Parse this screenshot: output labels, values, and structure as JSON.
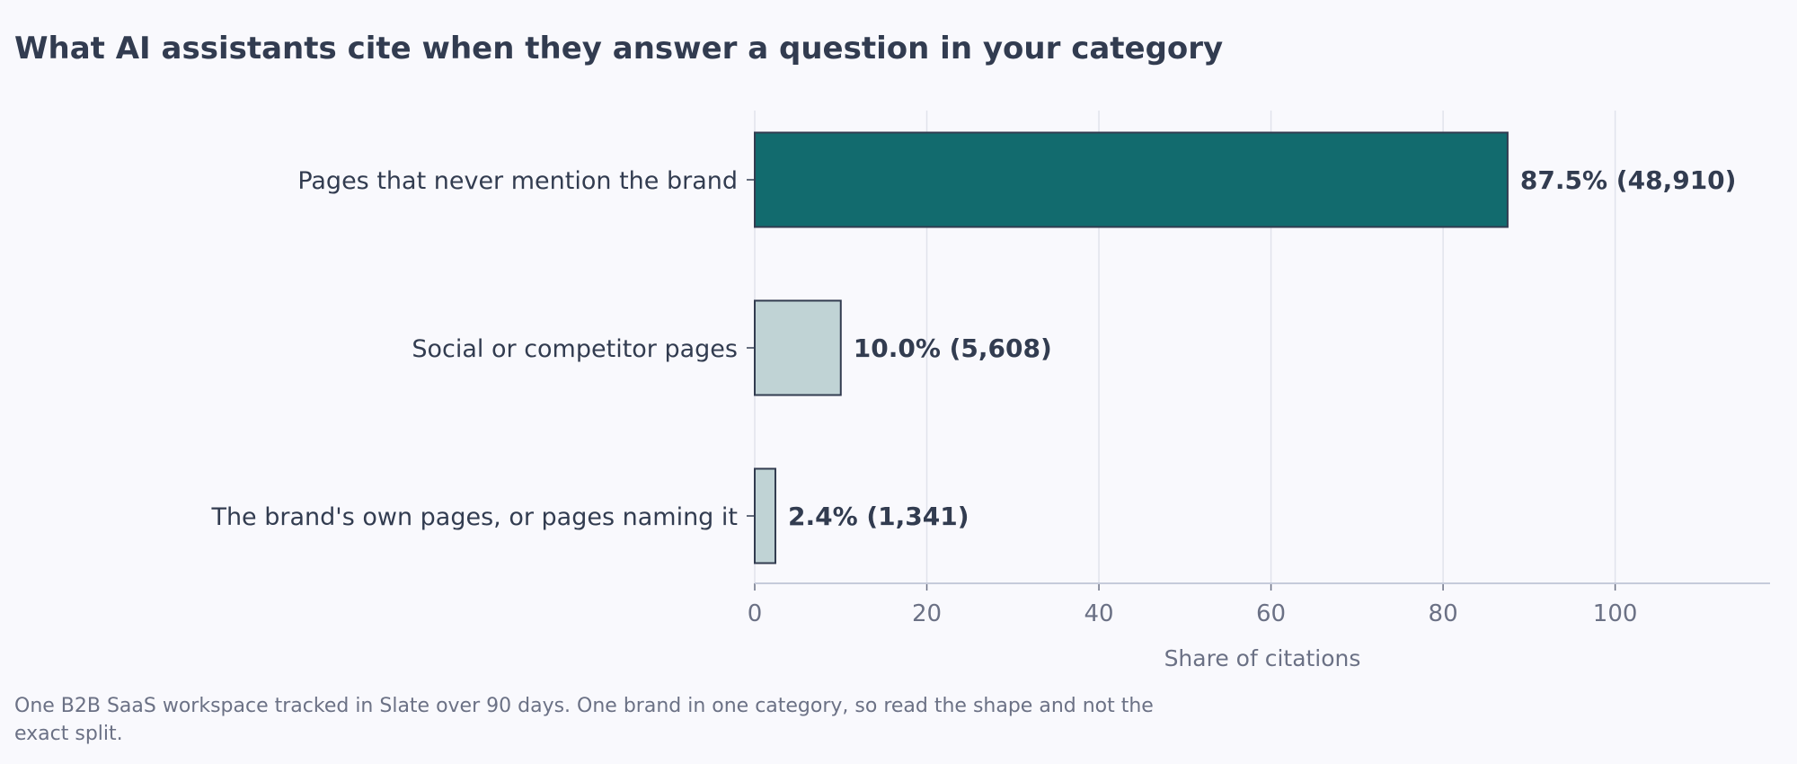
{
  "chart_data": {
    "type": "bar",
    "orientation": "horizontal",
    "title": "What AI assistants cite when they answer a question in your category",
    "xlabel": "Share of citations",
    "ylabel": "",
    "xlim": [
      0,
      118
    ],
    "xticks": [
      0,
      20,
      40,
      60,
      80,
      100
    ],
    "grid": "vertical",
    "categories": [
      "Pages that never mention the brand",
      "Social or competitor pages",
      "The brand's own pages, or pages naming it"
    ],
    "values": [
      87.5,
      10.0,
      2.4
    ],
    "data_labels": [
      "87.5%  (48,910)",
      "10.0%  (5,608)",
      "2.4%  (1,341)"
    ],
    "colors": [
      "#126b6e",
      "#c0d3d5",
      "#c0d3d5"
    ],
    "note": "One B2B SaaS workspace tracked in Slate over 90 days. One brand in one category, so read the shape and not the exact split."
  }
}
